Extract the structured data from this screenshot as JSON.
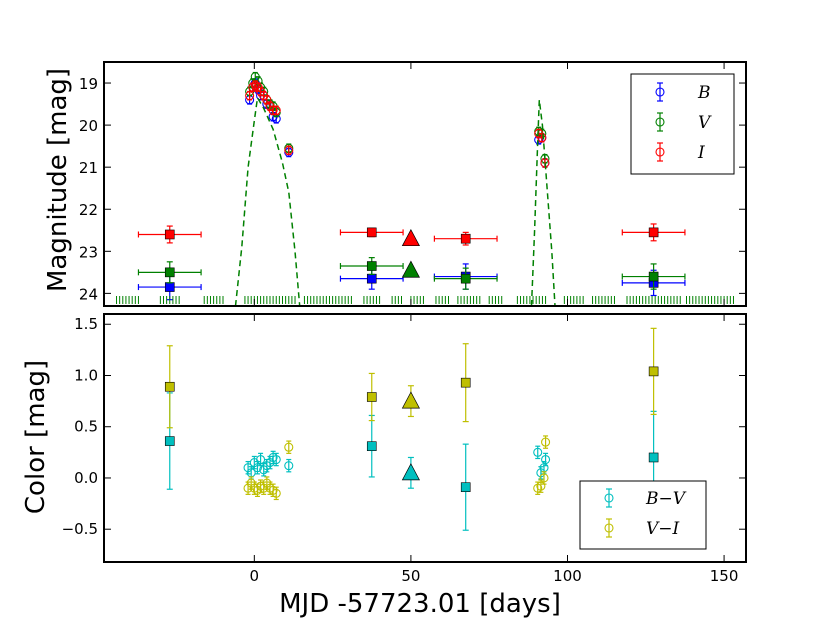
{
  "colors": {
    "B": "#0000ff",
    "V": "#008000",
    "I": "#ff0000",
    "BV": "#00bfbf",
    "VI": "#bfbf00",
    "model": "#008000"
  },
  "chart_data": [
    {
      "type": "scatter",
      "title": "",
      "xlabel": "",
      "ylabel": "Magnitude [mag]",
      "xlim": [
        -48,
        157
      ],
      "ylim": [
        24.3,
        18.5
      ],
      "y_inverted": true,
      "yticks": [
        19,
        20,
        21,
        22,
        23,
        24
      ],
      "ytick_labels": [
        "19",
        "20",
        "21",
        "22",
        "23",
        "24"
      ],
      "legend": {
        "position": "top-right",
        "entries": [
          "B",
          "V",
          "I"
        ]
      },
      "series": [
        {
          "name": "B",
          "marker": "circle",
          "points": [
            {
              "x": -1.5,
              "y": 19.4
            },
            {
              "x": -0.5,
              "y": 19.1
            },
            {
              "x": 0.3,
              "y": 19.0
            },
            {
              "x": 1.2,
              "y": 19.15
            },
            {
              "x": 2.0,
              "y": 19.3
            },
            {
              "x": 3.0,
              "y": 19.3
            },
            {
              "x": 4.0,
              "y": 19.5
            },
            {
              "x": 5.0,
              "y": 19.55
            },
            {
              "x": 6.0,
              "y": 19.8
            },
            {
              "x": 7.0,
              "y": 19.85
            },
            {
              "x": 11.0,
              "y": 20.65
            },
            {
              "x": 90.8,
              "y": 20.35
            },
            {
              "x": 91.8,
              "y": 20.3
            },
            {
              "x": 92.8,
              "y": 20.9
            }
          ]
        },
        {
          "name": "V",
          "marker": "circle",
          "points": [
            {
              "x": -1.5,
              "y": 19.2
            },
            {
              "x": -0.5,
              "y": 19.0
            },
            {
              "x": 0.3,
              "y": 18.85
            },
            {
              "x": 1.2,
              "y": 18.95
            },
            {
              "x": 2.0,
              "y": 19.1
            },
            {
              "x": 3.0,
              "y": 19.2
            },
            {
              "x": 4.0,
              "y": 19.4
            },
            {
              "x": 5.0,
              "y": 19.5
            },
            {
              "x": 6.0,
              "y": 19.55
            },
            {
              "x": 7.0,
              "y": 19.7
            },
            {
              "x": 11.0,
              "y": 20.55
            },
            {
              "x": 90.8,
              "y": 20.15
            },
            {
              "x": 91.8,
              "y": 20.2
            },
            {
              "x": 92.8,
              "y": 20.8
            }
          ]
        },
        {
          "name": "I",
          "marker": "circle",
          "points": [
            {
              "x": -1.5,
              "y": 19.3
            },
            {
              "x": -0.5,
              "y": 19.1
            },
            {
              "x": 0.3,
              "y": 19.05
            },
            {
              "x": 1.2,
              "y": 19.1
            },
            {
              "x": 2.0,
              "y": 19.2
            },
            {
              "x": 3.0,
              "y": 19.3
            },
            {
              "x": 4.0,
              "y": 19.4
            },
            {
              "x": 5.0,
              "y": 19.55
            },
            {
              "x": 6.0,
              "y": 19.65
            },
            {
              "x": 7.0,
              "y": 19.65
            },
            {
              "x": 11.0,
              "y": 20.6
            },
            {
              "x": 90.8,
              "y": 20.2
            },
            {
              "x": 91.8,
              "y": 20.3
            },
            {
              "x": 92.8,
              "y": 20.9
            }
          ]
        },
        {
          "name": "B (stacked)",
          "marker": "square",
          "points": [
            {
              "x": -27,
              "xerr": 10,
              "y": 23.85,
              "yerr": 0.3
            },
            {
              "x": 37.5,
              "xerr": 10,
              "y": 23.65,
              "yerr": 0.25
            },
            {
              "x": 67.5,
              "xerr": 10,
              "y": 23.6,
              "yerr": 0.3
            },
            {
              "x": 127.5,
              "xerr": 10,
              "y": 23.75,
              "yerr": 0.3
            }
          ]
        },
        {
          "name": "V (stacked)",
          "marker": "square",
          "points": [
            {
              "x": -27,
              "xerr": 10,
              "y": 23.5,
              "yerr": 0.25
            },
            {
              "x": 37.5,
              "xerr": 10,
              "y": 23.35,
              "yerr": 0.2
            },
            {
              "x": 67.5,
              "xerr": 10,
              "y": 23.65,
              "yerr": 0.25
            },
            {
              "x": 127.5,
              "xerr": 10,
              "y": 23.6,
              "yerr": 0.3
            }
          ]
        },
        {
          "name": "I (stacked)",
          "marker": "square",
          "points": [
            {
              "x": -27,
              "xerr": 10,
              "y": 22.6,
              "yerr": 0.2
            },
            {
              "x": 37.5,
              "xerr": 10,
              "y": 22.55,
              "yerr": 0.1
            },
            {
              "x": 67.5,
              "xerr": 10,
              "y": 22.7,
              "yerr": 0.15
            },
            {
              "x": 127.5,
              "xerr": 10,
              "y": 22.55,
              "yerr": 0.2
            }
          ]
        },
        {
          "name": "upper limits",
          "marker": "triangle",
          "points": [
            {
              "x": 50,
              "y": 22.7,
              "band": "I"
            },
            {
              "x": 50,
              "y": 23.45,
              "band": "V"
            }
          ]
        },
        {
          "name": "model V",
          "style": "dashed",
          "segments": [
            [
              [
                -6,
                24.3
              ],
              [
                -4,
                22.9
              ],
              [
                -2,
                21.0
              ],
              [
                0,
                19.9
              ],
              [
                1,
                19.35
              ],
              [
                3,
                19.6
              ],
              [
                6,
                20.1
              ],
              [
                9,
                20.9
              ],
              [
                11,
                21.6
              ],
              [
                13,
                23.0
              ],
              [
                14.5,
                24.3
              ]
            ],
            [
              [
                88.5,
                24.3
              ],
              [
                89.5,
                22.5
              ],
              [
                90.5,
                20.4
              ],
              [
                91,
                19.4
              ],
              [
                92,
                20.0
              ],
              [
                93.5,
                21.5
              ],
              [
                95,
                23.0
              ],
              [
                96,
                24.3
              ]
            ]
          ]
        },
        {
          "name": "observation epochs",
          "marker": "tick",
          "y": 24.2,
          "x": [
            -44,
            -43,
            -42,
            -41,
            -40,
            -39,
            -38,
            -37,
            -30,
            -29,
            -28,
            -27,
            -26,
            -25,
            -24,
            -16,
            -15,
            -14,
            -13,
            -12,
            -11,
            -10,
            -3,
            -2,
            -1,
            0,
            1,
            2,
            3,
            4,
            5,
            6,
            7,
            8,
            9,
            10,
            11,
            12,
            13,
            16,
            17,
            18,
            19,
            20,
            21,
            22,
            23,
            24,
            25,
            26,
            27,
            28,
            29,
            30,
            31,
            35,
            36,
            37,
            38,
            39,
            40,
            44,
            45,
            46,
            47,
            50,
            51,
            52,
            53,
            54,
            58,
            59,
            60,
            61,
            62,
            65,
            66,
            67,
            68,
            69,
            70,
            71,
            72,
            75,
            76,
            77,
            78,
            79,
            84,
            85,
            86,
            87,
            88,
            89,
            90,
            91,
            92,
            93,
            99,
            100,
            101,
            102,
            103,
            104,
            105,
            108,
            109,
            110,
            111,
            112,
            113,
            114,
            115,
            119,
            120,
            121,
            122,
            123,
            124,
            125,
            126,
            127,
            128,
            129,
            130,
            131,
            132,
            133,
            134,
            135,
            136,
            138,
            139,
            140,
            141,
            142,
            143,
            144,
            145,
            146,
            147,
            148,
            149,
            150,
            151,
            152,
            153
          ]
        }
      ]
    },
    {
      "type": "scatter",
      "title": "",
      "xlabel": "MJD -57723.01 [days]",
      "ylabel": "Color [mag]",
      "xlim": [
        -48,
        157
      ],
      "ylim": [
        -0.82,
        1.6
      ],
      "yticks": [
        -0.5,
        0.0,
        0.5,
        1.0,
        1.5
      ],
      "ytick_labels": [
        "−0.5",
        "0.0",
        "0.5",
        "1.0",
        "1.5"
      ],
      "xticks": [
        0,
        50,
        100,
        150
      ],
      "xtick_labels": [
        "0",
        "50",
        "100",
        "150"
      ],
      "legend": {
        "position": "bottom-right",
        "entries": [
          "B−V",
          "V−I"
        ]
      },
      "series": [
        {
          "name": "B−V",
          "marker": "circle",
          "points": [
            {
              "x": -2,
              "y": 0.1
            },
            {
              "x": -1,
              "y": 0.05
            },
            {
              "x": 0,
              "y": 0.15
            },
            {
              "x": 1,
              "y": 0.1
            },
            {
              "x": 2,
              "y": 0.18
            },
            {
              "x": 3,
              "y": 0.08
            },
            {
              "x": 4,
              "y": 0.12
            },
            {
              "x": 5,
              "y": 0.15
            },
            {
              "x": 6,
              "y": 0.2
            },
            {
              "x": 7,
              "y": 0.18
            },
            {
              "x": 11,
              "y": 0.12
            },
            {
              "x": 90.5,
              "y": 0.25
            },
            {
              "x": 91.5,
              "y": 0.05
            },
            {
              "x": 92.5,
              "y": 0.1
            },
            {
              "x": 93,
              "y": 0.18
            }
          ]
        },
        {
          "name": "V−I",
          "marker": "circle",
          "points": [
            {
              "x": -2,
              "y": -0.1
            },
            {
              "x": -1,
              "y": -0.05
            },
            {
              "x": 0,
              "y": -0.1
            },
            {
              "x": 1,
              "y": -0.12
            },
            {
              "x": 2,
              "y": -0.08
            },
            {
              "x": 3,
              "y": -0.1
            },
            {
              "x": 4,
              "y": -0.05
            },
            {
              "x": 5,
              "y": -0.1
            },
            {
              "x": 6,
              "y": -0.12
            },
            {
              "x": 7,
              "y": -0.15
            },
            {
              "x": 11,
              "y": 0.3
            },
            {
              "x": 90.5,
              "y": -0.1
            },
            {
              "x": 91.5,
              "y": -0.08
            },
            {
              "x": 92.5,
              "y": 0.0
            },
            {
              "x": 93,
              "y": 0.35
            }
          ]
        },
        {
          "name": "B−V (stacked)",
          "marker": "square",
          "points": [
            {
              "x": -27,
              "y": 0.36,
              "yerr": 0.47
            },
            {
              "x": 37.5,
              "y": 0.31,
              "yerr": 0.3
            },
            {
              "x": 67.5,
              "y": -0.09,
              "yerr": 0.42
            },
            {
              "x": 127.5,
              "y": 0.2,
              "yerr": 0.45
            }
          ]
        },
        {
          "name": "V−I (stacked)",
          "marker": "square",
          "points": [
            {
              "x": -27,
              "y": 0.89,
              "yerr": 0.4
            },
            {
              "x": 37.5,
              "y": 0.79,
              "yerr": 0.23
            },
            {
              "x": 67.5,
              "y": 0.93,
              "yerr": 0.38
            },
            {
              "x": 127.5,
              "y": 1.04,
              "yerr": 0.42
            }
          ]
        },
        {
          "name": "limits",
          "marker": "triangle",
          "points": [
            {
              "x": 50,
              "y": 0.75,
              "yerr": 0.15,
              "color": "VI"
            },
            {
              "x": 50,
              "y": 0.05,
              "yerr": 0.15,
              "color": "BV"
            }
          ]
        }
      ]
    }
  ]
}
